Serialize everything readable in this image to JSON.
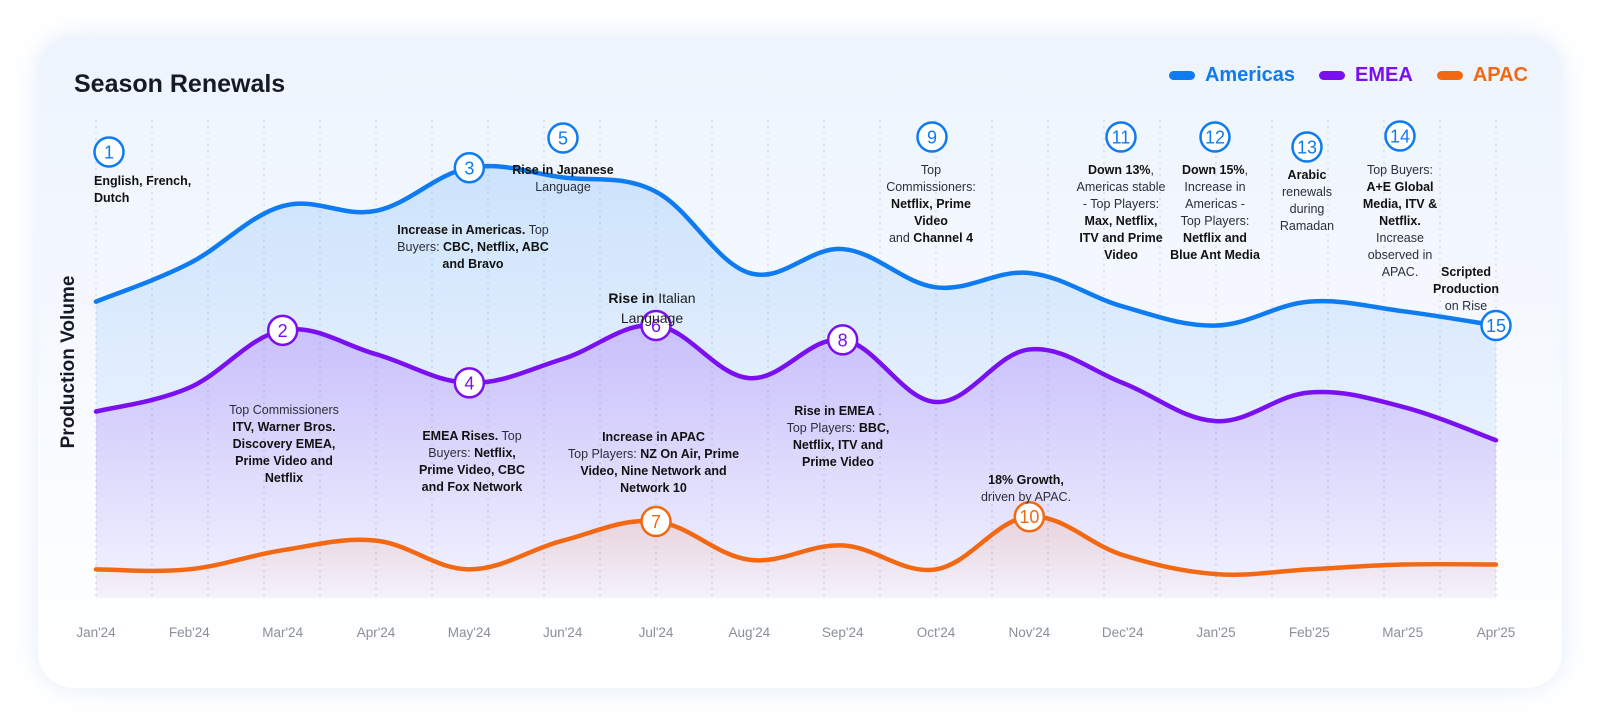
{
  "title": "Season Renewals",
  "legend": [
    {
      "name": "Americas",
      "color": "#0f7bf0"
    },
    {
      "name": "EMEA",
      "color": "#7a10ef"
    },
    {
      "name": "APAC",
      "color": "#f36812"
    }
  ],
  "chart_data": {
    "type": "line",
    "title": "Season Renewals",
    "ylabel": "Production Volume",
    "xlabel": "",
    "grid": true,
    "legend_position": "top-right",
    "x": [
      "Jan'24",
      "Feb'24",
      "Mar'24",
      "Apr'24",
      "May'24",
      "Jun'24",
      "Jul'24",
      "Aug'24",
      "Sep'24",
      "Oct'24",
      "Nov'24",
      "Dec'24",
      "Jan'25",
      "Feb'25",
      "Mar'25",
      "Apr'25"
    ],
    "series": [
      {
        "name": "Americas",
        "color": "#0f7bf0",
        "values": [
          62,
          70,
          82,
          81,
          90,
          88,
          85,
          68,
          73,
          65,
          68,
          61,
          57,
          62,
          60,
          57
        ]
      },
      {
        "name": "EMEA",
        "color": "#7a10ef",
        "values": [
          39,
          44,
          56,
          51,
          45,
          50,
          57,
          46,
          54,
          41,
          52,
          45,
          37,
          43,
          40,
          33
        ]
      },
      {
        "name": "APAC",
        "color": "#f36812",
        "values": [
          6,
          6,
          10,
          12,
          6,
          12,
          16,
          8,
          11,
          6,
          17,
          9,
          5,
          6,
          7,
          7
        ]
      }
    ],
    "markers": [
      {
        "n": "1",
        "series": "Americas",
        "x": "Jan'24"
      },
      {
        "n": "2",
        "series": "EMEA",
        "x": "Mar'24"
      },
      {
        "n": "3",
        "series": "Americas",
        "x": "May'24"
      },
      {
        "n": "4",
        "series": "EMEA",
        "x": "May'24"
      },
      {
        "n": "5",
        "series": "Americas",
        "x": "Jun'24"
      },
      {
        "n": "6",
        "series": "EMEA",
        "x": "Jul'24"
      },
      {
        "n": "7",
        "series": "APAC",
        "x": "Jul'24"
      },
      {
        "n": "8",
        "series": "EMEA",
        "x": "Sep'24"
      },
      {
        "n": "9",
        "series": "Americas",
        "x": "Oct'24"
      },
      {
        "n": "10",
        "series": "APAC",
        "x": "Nov'24"
      },
      {
        "n": "11",
        "series": "Americas",
        "x": "Dec'24"
      },
      {
        "n": "12",
        "series": "Americas",
        "x": "Jan'25"
      },
      {
        "n": "13",
        "series": "Americas",
        "x": "Feb'25"
      },
      {
        "n": "14",
        "series": "Americas",
        "x": "Mar'25"
      },
      {
        "n": "15",
        "series": "Americas",
        "x": "Apr'25"
      }
    ],
    "annotations": [
      {
        "id": "1",
        "html": "<b>English, French,<br>Dutch</b>"
      },
      {
        "id": "2",
        "html": "Top Commissioners<br><b>ITV, Warner Bros.<br>Discovery EMEA,<br>Prime Video and<br>Netflix</b>"
      },
      {
        "id": "3",
        "html": "<b>Increase in Americas.</b> Top<br>Buyers: <b>CBC, Netflix, ABC<br>and Bravo</b>"
      },
      {
        "id": "4",
        "html": "<b>EMEA Rises.</b> Top<br>Buyers: <b>Netflix,<br>Prime Video, CBC<br>and Fox Network</b>"
      },
      {
        "id": "5",
        "html": "<b>Rise in Japanese</b><br>Language"
      },
      {
        "id": "6",
        "html": "<b>Rise in</b> Italian<br>Language"
      },
      {
        "id": "7",
        "html": "<b>Increase in APAC</b><br>Top Players: <b>NZ On Air, Prime<br>Video, Nine Network and<br>Network 10</b>"
      },
      {
        "id": "8",
        "html": "<b>Rise in EMEA</b> .<br>Top Players: <b>BBC,<br>Netflix, ITV and<br>Prime Video</b>"
      },
      {
        "id": "9",
        "html": "Top<br>Commissioners:<br><b>Netflix, Prime<br>Video</b><br>and <b>Channel 4</b>"
      },
      {
        "id": "10",
        "html": "<b>18% Growth,</b><br>driven by APAC."
      },
      {
        "id": "11",
        "html": "<b>Down 13%</b>,<br>Americas stable<br>- Top Players:<br><b>Max, Netflix,<br>ITV and Prime<br>Video</b>"
      },
      {
        "id": "12",
        "html": "<b>Down 15%</b>,<br>Increase in<br>Americas -<br>Top Players:<br><b>Netflix and<br>Blue Ant Media</b>"
      },
      {
        "id": "13",
        "html": "<b>Arabic</b><br>renewals<br>during<br>Ramadan"
      },
      {
        "id": "14",
        "html": "Top Buyers:<br><b>A+E Global<br>Media, ITV &amp;<br>Netflix.</b><br>Increase<br>observed in<br>APAC."
      },
      {
        "id": "15",
        "html": "<b>Scripted<br>Production</b><br>on Rise"
      }
    ]
  }
}
